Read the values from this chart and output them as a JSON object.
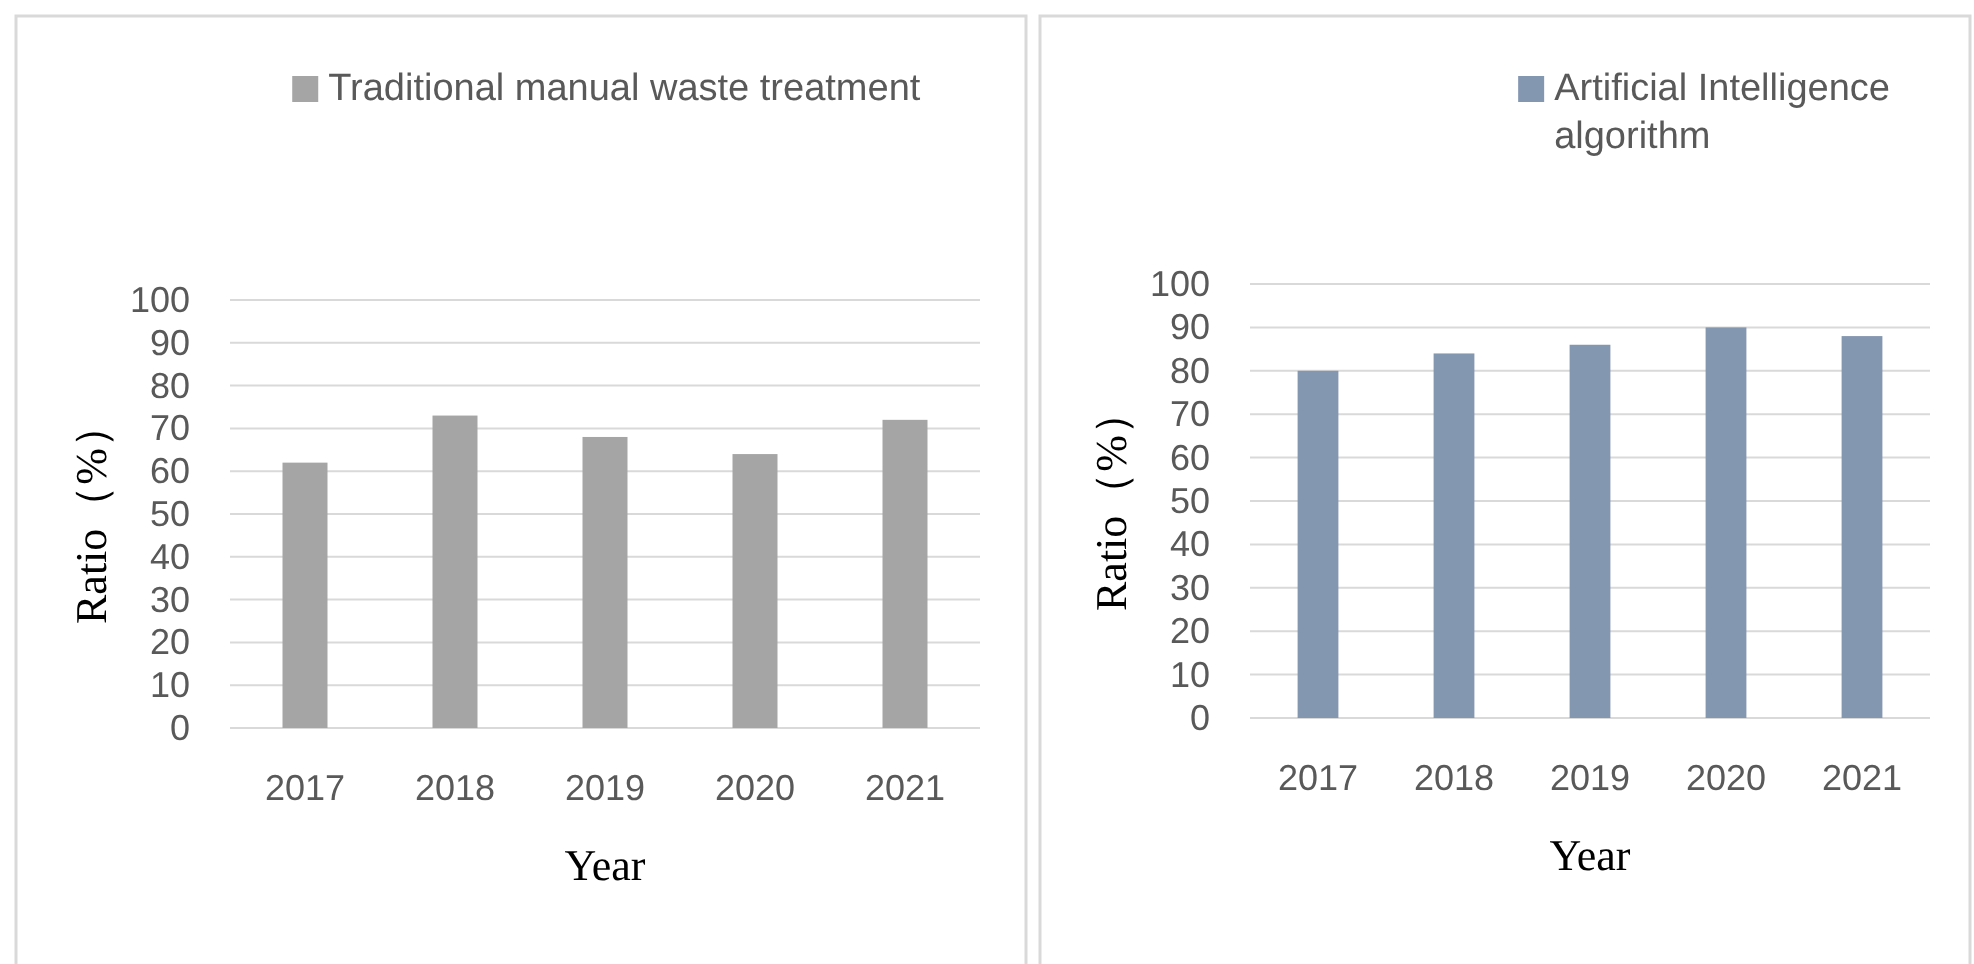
{
  "chart_data": [
    {
      "type": "bar",
      "xlabel": "Year",
      "ylabel": "Ratio（%）",
      "categories": [
        "2017",
        "2018",
        "2019",
        "2020",
        "2021"
      ],
      "series": [
        {
          "name": "Traditional manual waste treatment",
          "color": "#a5a5a5",
          "values": [
            62,
            73,
            68,
            64,
            72
          ]
        }
      ],
      "ylim": [
        0,
        100
      ],
      "yticks": [
        0,
        10,
        20,
        30,
        40,
        50,
        60,
        70,
        80,
        90,
        100
      ],
      "grid": "y",
      "legend": "top"
    },
    {
      "type": "bar",
      "xlabel": "Year",
      "ylabel": "Ratio（%）",
      "categories": [
        "2017",
        "2018",
        "2019",
        "2020",
        "2021"
      ],
      "series": [
        {
          "name": "Artificial Intelligence algorithm",
          "color": "#8497b0",
          "values": [
            80,
            84,
            86,
            90,
            88
          ]
        }
      ],
      "ylim": [
        0,
        100
      ],
      "yticks": [
        0,
        10,
        20,
        30,
        40,
        50,
        60,
        70,
        80,
        90,
        100
      ],
      "grid": "y",
      "legend": "top right"
    }
  ]
}
